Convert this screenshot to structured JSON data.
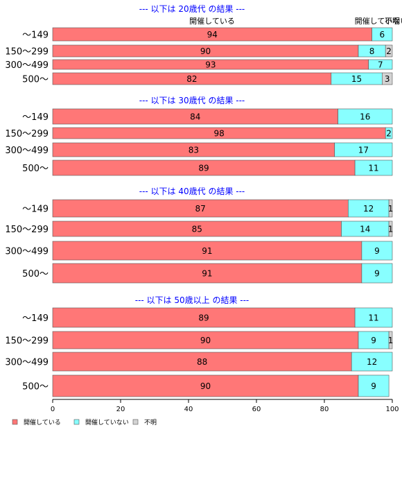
{
  "chart_data": {
    "type": "bar",
    "orientation": "horizontal",
    "stacked": true,
    "xlim": [
      0,
      100
    ],
    "x_ticks": [
      "0",
      "20",
      "40",
      "60",
      "80",
      "100"
    ],
    "categories": [
      "～149",
      "150～299",
      "300～499",
      "500～"
    ],
    "legend": {
      "position": "bottom-left",
      "items": [
        "開催している",
        "開催していない",
        "不明"
      ]
    },
    "series_colors": {
      "開催している": "#ff7777",
      "開催していない": "#88ffff",
      "不明": "#d3d3d3"
    },
    "header_labels": [
      "開催している",
      "開催していない",
      "不明"
    ],
    "panels": [
      {
        "title": "--- 以下は 20歳代 の結果 ---",
        "series": [
          {
            "name": "開催している",
            "values": [
              94,
              90,
              93,
              82
            ]
          },
          {
            "name": "開催していない",
            "values": [
              6,
              8,
              7,
              15
            ]
          },
          {
            "name": "不明",
            "values": [
              0,
              2,
              0,
              3
            ]
          }
        ]
      },
      {
        "title": "--- 以下は 30歳代 の結果 ---",
        "series": [
          {
            "name": "開催している",
            "values": [
              84,
              98,
              83,
              89
            ]
          },
          {
            "name": "開催していない",
            "values": [
              16,
              2,
              17,
              11
            ]
          },
          {
            "name": "不明",
            "values": [
              0,
              0,
              0,
              0
            ]
          }
        ]
      },
      {
        "title": "--- 以下は 40歳代 の結果 ---",
        "series": [
          {
            "name": "開催している",
            "values": [
              87,
              85,
              91,
              91
            ]
          },
          {
            "name": "開催していない",
            "values": [
              12,
              14,
              9,
              9
            ]
          },
          {
            "name": "不明",
            "values": [
              1,
              1,
              0,
              0
            ]
          }
        ]
      },
      {
        "title": "--- 以下は 50歳以上 の結果 ---",
        "series": [
          {
            "name": "開催している",
            "values": [
              89,
              90,
              88,
              90
            ]
          },
          {
            "name": "開催していない",
            "values": [
              11,
              9,
              12,
              9
            ]
          },
          {
            "name": "不明",
            "values": [
              0,
              1,
              0,
              0
            ]
          }
        ]
      }
    ]
  }
}
